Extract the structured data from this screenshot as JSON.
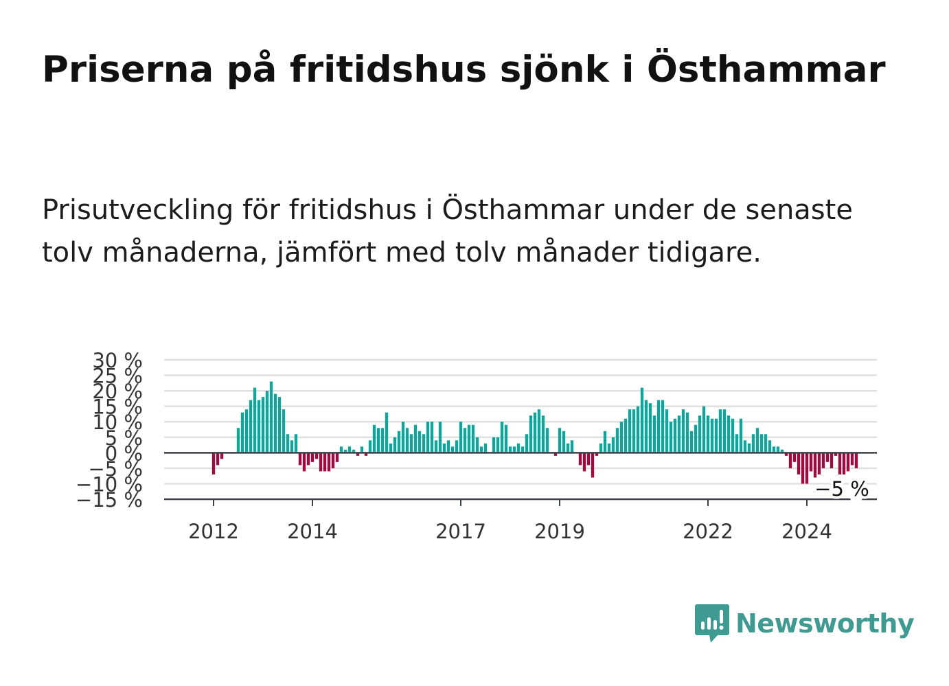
{
  "header": {
    "title": "Priserna på fritidshus sjönk i Östhammar",
    "subtitle": "Prisutveckling för fritidshus i Östhammar under de senaste tolv månaderna, jämfört med tolv månader tidigare."
  },
  "brand": {
    "name": "Newsworthy",
    "icon": "newsworthy-logo-icon",
    "color": "#3f9a92"
  },
  "colors": {
    "positive": "#0fa59a",
    "negative": "#a10a3e",
    "zero_line": "#3d4148",
    "grid": "#e0e0e0"
  },
  "chart_data": {
    "type": "bar",
    "start": "2011-01",
    "end": "2025-06",
    "x_ticks": [
      "2012",
      "2014",
      "2017",
      "2019",
      "2022",
      "2024"
    ],
    "y_ticks": [
      "30 %",
      "25 %",
      "20 %",
      "15 %",
      "10 %",
      "5 %",
      "0 %",
      "−5 %",
      "−10 %",
      "−15 %"
    ],
    "ylim": [
      -15,
      30
    ],
    "unit": "%",
    "last_value_label": "−5 %",
    "grid": true,
    "values": [
      null,
      null,
      null,
      null,
      null,
      null,
      null,
      null,
      null,
      null,
      null,
      null,
      -7,
      -4,
      -2,
      null,
      null,
      null,
      8,
      13,
      14,
      17,
      21,
      17,
      18,
      20,
      23,
      19,
      18,
      14,
      6,
      4,
      6,
      -4,
      -6,
      -4,
      -3,
      -2,
      -6,
      -6,
      -6,
      -5,
      -3,
      2,
      1,
      2,
      1,
      -1,
      2,
      -1,
      4,
      9,
      8,
      8,
      13,
      3,
      5,
      7,
      10,
      8,
      6,
      9,
      7,
      6,
      10,
      10,
      4,
      10,
      3,
      4,
      2,
      4,
      10,
      8,
      9,
      9,
      5,
      2,
      3,
      0,
      5,
      5,
      10,
      9,
      2,
      2,
      3,
      2,
      6,
      12,
      13,
      14,
      12,
      8,
      0,
      -1,
      8,
      7,
      3,
      4,
      0,
      -4,
      -6,
      -4,
      -8,
      -1,
      3,
      7,
      3,
      5,
      8,
      10,
      11,
      14,
      14,
      15,
      21,
      17,
      16,
      12,
      17,
      17,
      14,
      10,
      11,
      12,
      14,
      13,
      7,
      9,
      12,
      15,
      12,
      11,
      11,
      14,
      14,
      12,
      11,
      6,
      11,
      4,
      3,
      6,
      8,
      6,
      6,
      4,
      2,
      2,
      1,
      -1,
      -5,
      -3,
      -7,
      -10,
      -10,
      -6,
      -8,
      -7,
      -5,
      -3,
      -5,
      -1,
      -7,
      -7,
      -6,
      -4,
      -5
    ]
  }
}
